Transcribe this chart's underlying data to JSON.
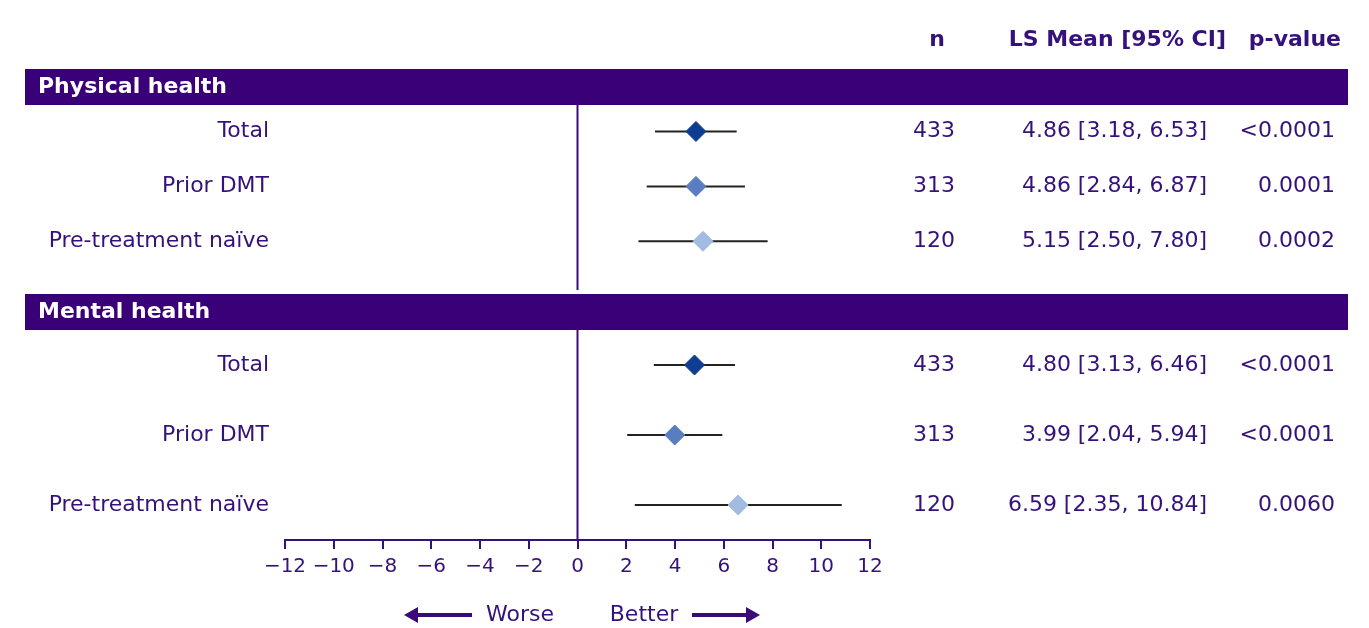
{
  "chart_data": [
    {
      "type": "scatter",
      "orientation": "horizontal",
      "title": "Physical health",
      "categories": [
        "Total",
        "Prior DMT",
        "Pre-treatment naïve"
      ],
      "values": [
        4.86,
        4.86,
        5.15
      ],
      "errors": [
        [
          3.18,
          6.53
        ],
        [
          2.84,
          6.87
        ],
        [
          2.5,
          7.8
        ]
      ],
      "colors": [
        "#0f3d91",
        "#5a7cc0",
        "#a2bbe0"
      ],
      "value_labels": [
        "4.86 [3.18, 6.53]",
        "4.86 [2.84, 6.87]",
        "5.15 [2.50, 7.80]"
      ],
      "marker": "diamond",
      "grid": false,
      "legend": false,
      "tick_labels": "y",
      "xlim": [
        -12,
        12
      ],
      "ref_lines": [
        {
          "axis": "x",
          "value": 0,
          "color": "#3a0a78"
        }
      ],
      "annotations": [
        "433",
        "<0.0001",
        "313",
        "0.0001",
        "120",
        "0.0002",
        "n",
        "LS Mean [95% CI]",
        "p-value"
      ]
    },
    {
      "type": "scatter",
      "orientation": "horizontal",
      "title": "Mental health",
      "categories": [
        "Total",
        "Prior DMT",
        "Pre-treatment naïve"
      ],
      "values": [
        4.8,
        3.99,
        6.59
      ],
      "errors": [
        [
          3.13,
          6.46
        ],
        [
          2.04,
          5.94
        ],
        [
          2.35,
          10.84
        ]
      ],
      "colors": [
        "#0f3d91",
        "#5a7cc0",
        "#a2bbe0"
      ],
      "value_labels": [
        "4.80 [3.13, 6.46]",
        "3.99 [2.04, 5.94]",
        "6.59 [2.35, 10.84]"
      ],
      "marker": "diamond",
      "grid": false,
      "legend": false,
      "xlim": [
        -12,
        12
      ],
      "xticks": [
        {
          "value": -12,
          "label": "−12"
        },
        {
          "value": -10,
          "label": "−10"
        },
        {
          "value": -8,
          "label": "−8"
        },
        {
          "value": -6,
          "label": "−6"
        },
        {
          "value": -4,
          "label": "−4"
        },
        {
          "value": -2,
          "label": "−2"
        },
        0,
        2,
        4,
        6,
        8,
        10,
        12
      ],
      "ref_lines": [
        {
          "axis": "x",
          "value": 0,
          "color": "#3a0a78"
        }
      ],
      "annotations": [
        "433",
        "<0.0001",
        "313",
        "<0.0001",
        "120",
        "0.0060",
        "Worse",
        "Better"
      ]
    }
  ]
}
